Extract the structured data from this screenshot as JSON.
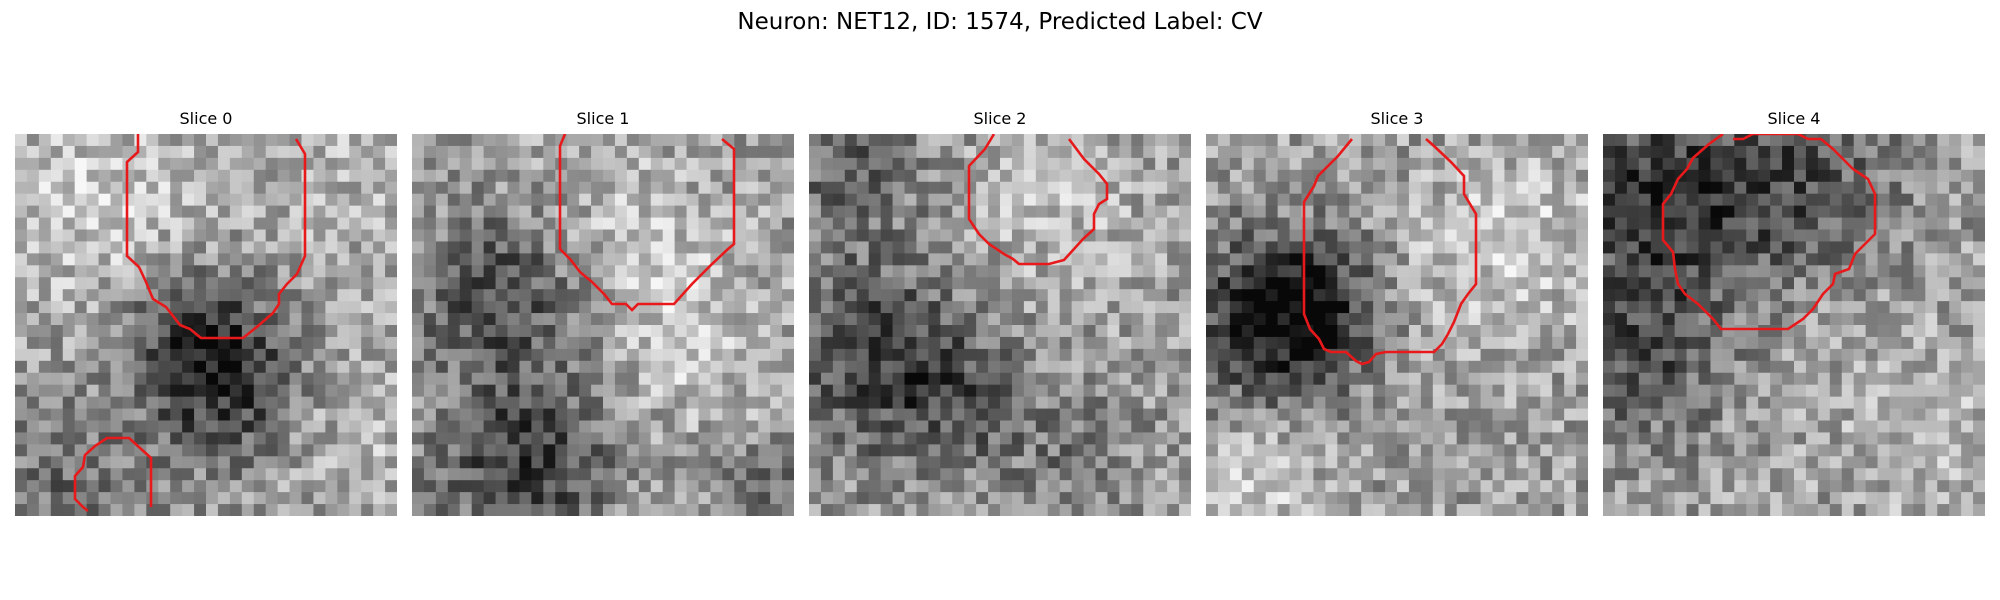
{
  "figure": {
    "title": "Neuron: NET12, ID: 1574, Predicted Label: CV"
  },
  "colors": {
    "contour": "#e8191b",
    "background": "#ffffff",
    "colormap": "grayscale"
  },
  "panels": [
    {
      "title": "Slice 0"
    },
    {
      "title": "Slice 1"
    },
    {
      "title": "Slice 2"
    },
    {
      "title": "Slice 3"
    },
    {
      "title": "Slice 4"
    }
  ]
}
